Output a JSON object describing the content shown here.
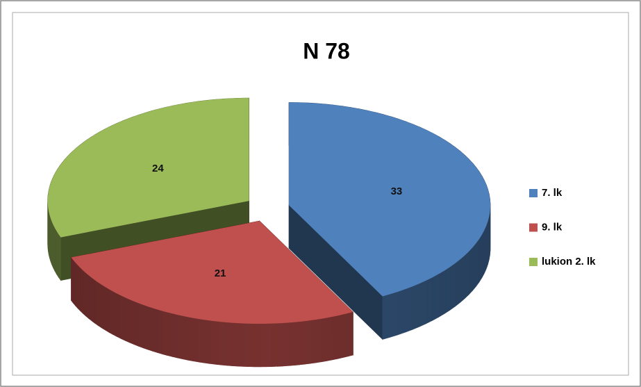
{
  "chart_data": {
    "type": "pie",
    "title": "N 78",
    "categories": [
      "7. lk",
      "9. lk",
      "lukion 2. lk"
    ],
    "values": [
      33,
      21,
      24
    ],
    "colors": [
      "#4f81bd",
      "#c0504d",
      "#9bbb59"
    ],
    "legend": "right"
  }
}
